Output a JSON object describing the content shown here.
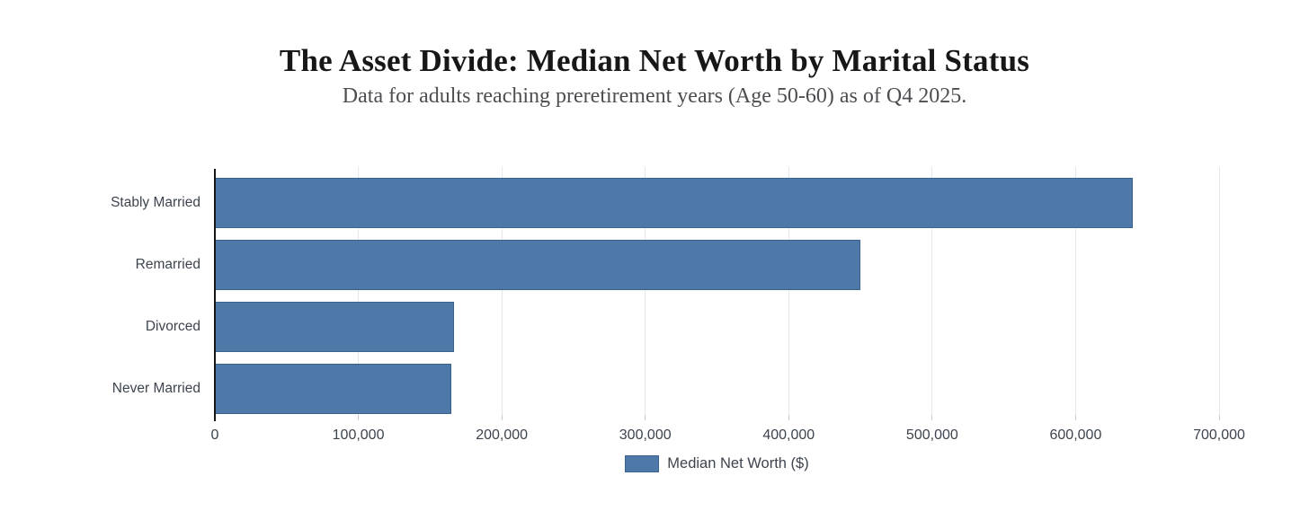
{
  "header": {
    "title": "The Asset Divide: Median Net Worth by Marital Status",
    "subtitle": "Data for adults reaching preretirement years (Age 50-60) as of Q4 2025."
  },
  "chart_data": {
    "type": "bar",
    "orientation": "horizontal",
    "title": "The Asset Divide: Median Net Worth by Marital Status",
    "subtitle": "Data for adults reaching preretirement years (Age 50-60) as of Q4 2025.",
    "categories": [
      "Stably Married",
      "Remarried",
      "Divorced",
      "Never Married"
    ],
    "series": [
      {
        "name": "Median Net Worth ($)",
        "values": [
          640000,
          450000,
          167000,
          165000
        ]
      }
    ],
    "xlabel": "",
    "ylabel": "",
    "xlim": [
      0,
      700000
    ],
    "x_tick_step": 100000,
    "x_tick_labels": [
      "0",
      "100,000",
      "200,000",
      "300,000",
      "400,000",
      "500,000",
      "600,000",
      "700,000"
    ],
    "grid": "vertical",
    "legend_position": "bottom-center",
    "colors": {
      "bar_fill": "#4d78a8",
      "bar_border": "#3a648f",
      "gridline": "#e4e7eb",
      "axis_line": "#16181a",
      "tick_text": "#3d444e"
    }
  },
  "legend": {
    "label": "Median Net Worth ($)",
    "swatch_color": "#4d78a8"
  }
}
